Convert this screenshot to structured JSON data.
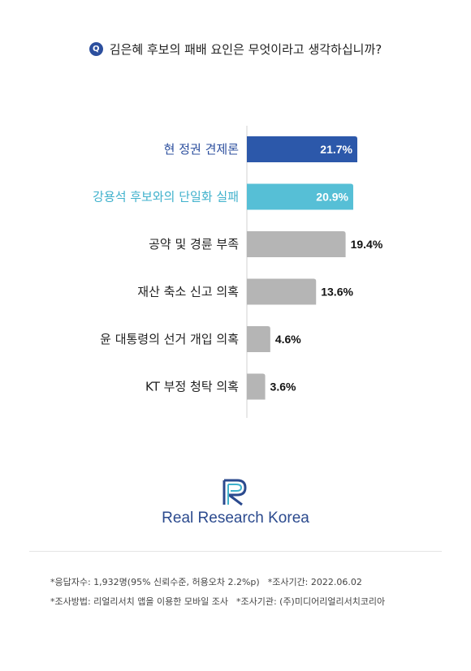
{
  "question": {
    "badge": "Q",
    "text": "김은혜 후보의 패배 요인은 무엇이라고 생각하십니까?"
  },
  "chart_data": {
    "type": "bar",
    "orientation": "horizontal",
    "categories": [
      "현 정권 견제론",
      "강용석 후보와의 단일화 실패",
      "공약 및 경륜 부족",
      "재산 축소 신고 의혹",
      "윤 대통령의 선거 개입 의혹",
      "KT 부정 청탁 의혹"
    ],
    "values": [
      21.7,
      20.9,
      19.4,
      13.6,
      4.6,
      3.6
    ],
    "value_labels": [
      "21.7%",
      "20.9%",
      "19.4%",
      "13.6%",
      "4.6%",
      "3.6%"
    ],
    "colors": [
      "#2c58aa",
      "#56bfd6",
      "#b5b5b5",
      "#b5b5b5",
      "#b5b5b5",
      "#b5b5b5"
    ],
    "label_colors": [
      "#2c4f9e",
      "#3fb1cc",
      "#222222",
      "#222222",
      "#222222",
      "#222222"
    ],
    "value_inside": [
      true,
      true,
      false,
      false,
      false,
      false
    ],
    "xlim": [
      0,
      25
    ],
    "grid": false,
    "legend": "none"
  },
  "brand": {
    "logo_icon": "rr-logo-icon",
    "name": "Real Research Korea",
    "color": "#2b4a8e"
  },
  "footnotes": {
    "line1": [
      "*응답자수: 1,932명(95% 신뢰수준, 허용오차 2.2%p)",
      "*조사기간: 2022.06.02"
    ],
    "line2": [
      "*조사방법: 리얼리서치 앱을 이용한 모바일 조사",
      "*조사기관: (주)미디어리얼리서치코리아"
    ]
  }
}
